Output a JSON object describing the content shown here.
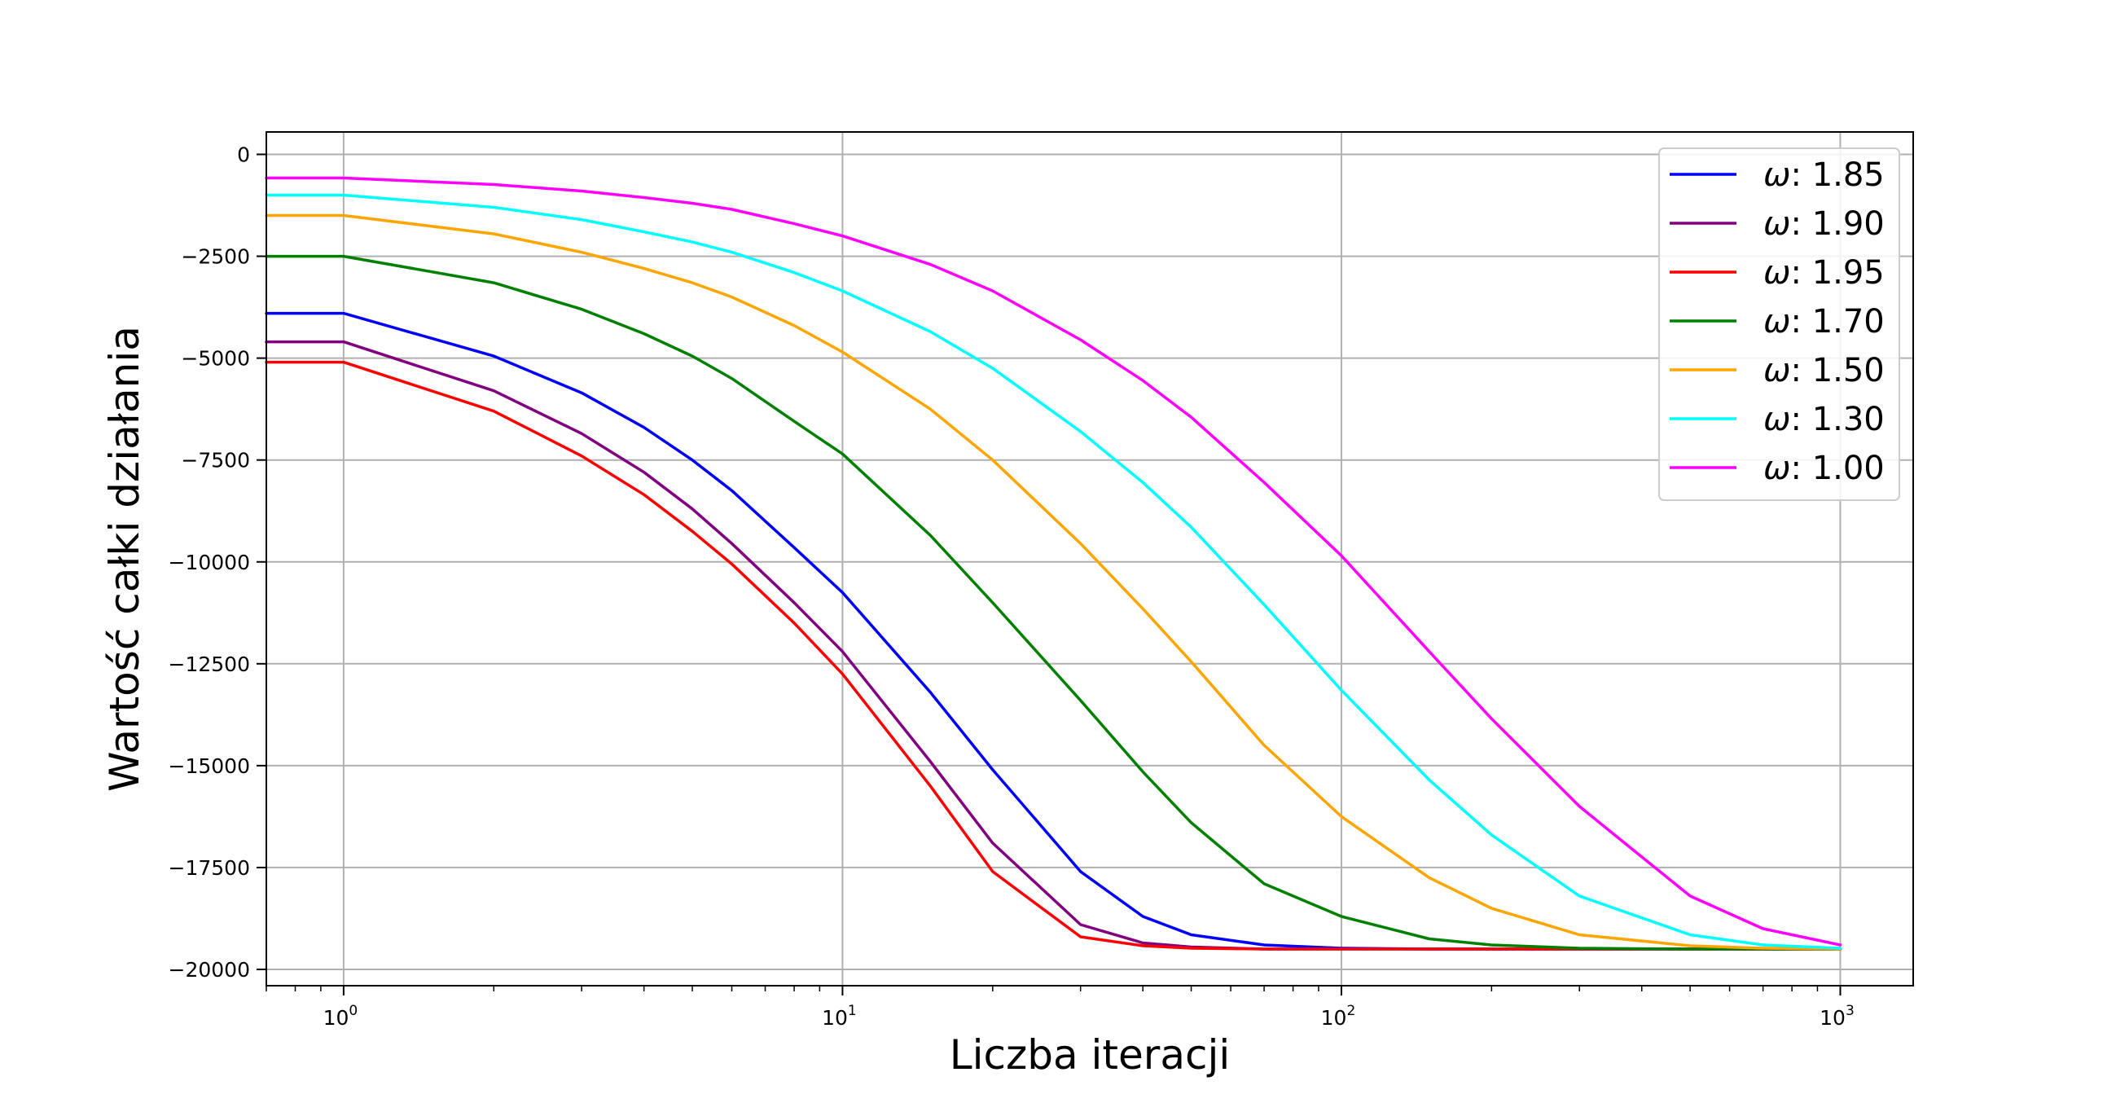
{
  "chart_data": {
    "type": "line",
    "title": "",
    "xlabel": "Liczba iteracji",
    "ylabel": "Wartość całki działania",
    "xscale": "log",
    "xlim": [
      0.7,
      1400
    ],
    "ylim": [
      -20400,
      550
    ],
    "grid": true,
    "legend_position": "top-right",
    "yticks": [
      0,
      -2500,
      -5000,
      -7500,
      -10000,
      -12500,
      -15000,
      -17500,
      -20000
    ],
    "ytick_labels": [
      "0",
      "−2500",
      "−5000",
      "−7500",
      "−10000",
      "−12500",
      "−15000",
      "−17500",
      "−20000"
    ],
    "xticks": [
      1,
      10,
      100,
      1000
    ],
    "xtick_bases": [
      "10",
      "10",
      "10",
      "10"
    ],
    "xtick_exponents": [
      "0",
      "1",
      "2",
      "3"
    ],
    "x": [
      0.7,
      1,
      2,
      3,
      4,
      5,
      6,
      8,
      10,
      15,
      20,
      30,
      40,
      50,
      70,
      100,
      150,
      200,
      300,
      500,
      700,
      1000
    ],
    "series": [
      {
        "name": "ω: 1.85",
        "symbol": "ω",
        "value": ": 1.85",
        "color": "#0000ff",
        "values": [
          -3900,
          -3900,
          -4950,
          -5850,
          -6700,
          -7500,
          -8250,
          -9650,
          -10750,
          -13200,
          -15100,
          -17600,
          -18700,
          -19150,
          -19400,
          -19480,
          -19500,
          -19500,
          -19500,
          -19500,
          -19500,
          -19500
        ]
      },
      {
        "name": "ω: 1.90",
        "symbol": "ω",
        "value": ": 1.90",
        "color": "#800080",
        "values": [
          -4600,
          -4600,
          -5800,
          -6850,
          -7800,
          -8700,
          -9550,
          -11000,
          -12200,
          -14900,
          -16900,
          -18900,
          -19350,
          -19450,
          -19500,
          -19500,
          -19500,
          -19500,
          -19500,
          -19500,
          -19500,
          -19500
        ]
      },
      {
        "name": "ω: 1.95",
        "symbol": "ω",
        "value": ": 1.95",
        "color": "#ff0000",
        "values": [
          -5100,
          -5100,
          -6300,
          -7400,
          -8350,
          -9250,
          -10050,
          -11500,
          -12750,
          -15500,
          -17600,
          -19200,
          -19420,
          -19480,
          -19500,
          -19500,
          -19500,
          -19500,
          -19500,
          -19500,
          -19500,
          -19500
        ]
      },
      {
        "name": "ω: 1.70",
        "symbol": "ω",
        "value": ": 1.70",
        "color": "#008000",
        "values": [
          -2500,
          -2500,
          -3150,
          -3800,
          -4400,
          -4950,
          -5500,
          -6550,
          -7350,
          -9350,
          -11000,
          -13400,
          -15150,
          -16400,
          -17900,
          -18700,
          -19250,
          -19400,
          -19480,
          -19500,
          -19500,
          -19500
        ]
      },
      {
        "name": "ω: 1.50",
        "symbol": "ω",
        "value": ": 1.50",
        "color": "#ffa500",
        "values": [
          -1500,
          -1500,
          -1950,
          -2400,
          -2800,
          -3150,
          -3500,
          -4200,
          -4850,
          -6250,
          -7500,
          -9550,
          -11150,
          -12450,
          -14500,
          -16250,
          -17750,
          -18500,
          -19150,
          -19420,
          -19480,
          -19500
        ]
      },
      {
        "name": "ω: 1.30",
        "symbol": "ω",
        "value": ": 1.30",
        "color": "#00ffff",
        "values": [
          -1000,
          -1000,
          -1300,
          -1600,
          -1900,
          -2150,
          -2400,
          -2900,
          -3350,
          -4350,
          -5250,
          -6800,
          -8050,
          -9150,
          -11050,
          -13150,
          -15350,
          -16700,
          -18200,
          -19150,
          -19400,
          -19480
        ]
      },
      {
        "name": "ω: 1.00",
        "symbol": "ω",
        "value": ": 1.00",
        "color": "#ff00ff",
        "values": [
          -580,
          -580,
          -740,
          -900,
          -1060,
          -1200,
          -1350,
          -1700,
          -2000,
          -2700,
          -3350,
          -4550,
          -5550,
          -6450,
          -8050,
          -9850,
          -12200,
          -13850,
          -16000,
          -18200,
          -19000,
          -19400
        ]
      }
    ]
  }
}
